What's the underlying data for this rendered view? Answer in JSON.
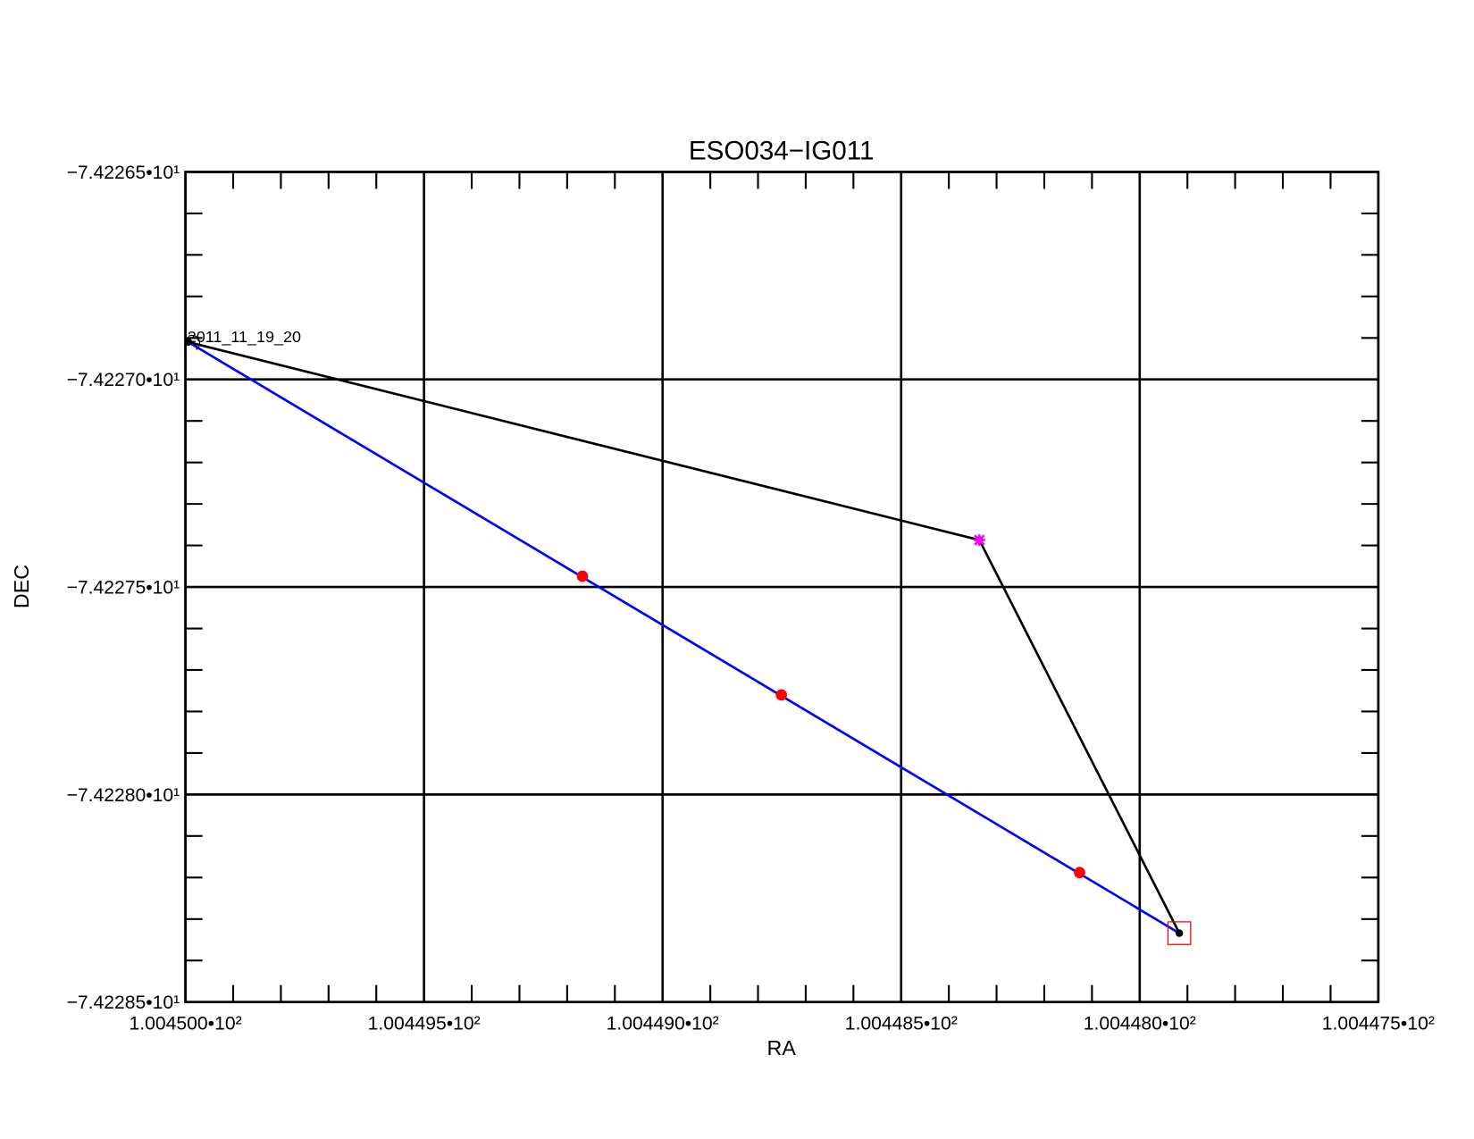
{
  "chart_data": {
    "type": "line",
    "title": "ESO034−IG011",
    "x_label": "RA",
    "y_label": "DEC",
    "xlim": [
      100.45,
      100.4475
    ],
    "ylim": [
      -74.2285,
      -74.2265
    ],
    "xticks": [
      {
        "value": 100.45,
        "label": "1.004500•10²"
      },
      {
        "value": 100.4495,
        "label": "1.004495•10²"
      },
      {
        "value": 100.449,
        "label": "1.004490•10²"
      },
      {
        "value": 100.4485,
        "label": "1.004485•10²"
      },
      {
        "value": 100.448,
        "label": "1.004480•10²"
      },
      {
        "value": 100.4475,
        "label": "1.004475•10²"
      }
    ],
    "yticks": [
      {
        "value": -74.2265,
        "label": "−7.42265•10¹"
      },
      {
        "value": -74.227,
        "label": "−7.42270•10¹"
      },
      {
        "value": -74.2275,
        "label": "−7.42275•10¹"
      },
      {
        "value": -74.228,
        "label": "−7.42280•10¹"
      },
      {
        "value": -74.2285,
        "label": "−7.42285•10¹"
      }
    ],
    "grid": true,
    "series": [
      {
        "color": "#000000",
        "line": true,
        "marker": "dot",
        "x": [
          100.449994,
          100.448336,
          100.447917
        ],
        "values": [
          -74.22691,
          -74.227387,
          -74.228334
        ]
      },
      {
        "color": "#0000ff",
        "line": true,
        "marker": "none",
        "x": [
          100.449994,
          100.447917
        ],
        "values": [
          -74.22691,
          -74.228334
        ]
      },
      {
        "color": "#ff0000",
        "line": false,
        "marker": "dot",
        "x": [
          100.449168,
          100.448751,
          100.448126
        ],
        "values": [
          -74.227474,
          -74.22776,
          -74.228188
        ]
      },
      {
        "color": "#ff00ff",
        "line": false,
        "marker": "star",
        "x": [
          100.448336
        ],
        "values": [
          -74.227387
        ]
      },
      {
        "color": "#ff0000",
        "line": false,
        "marker": "square",
        "x": [
          100.447917
        ],
        "values": [
          -74.228334
        ]
      }
    ],
    "annotations": [
      {
        "text": "2011_11_19_20",
        "x": 100.449994,
        "y": -74.22691
      }
    ]
  }
}
